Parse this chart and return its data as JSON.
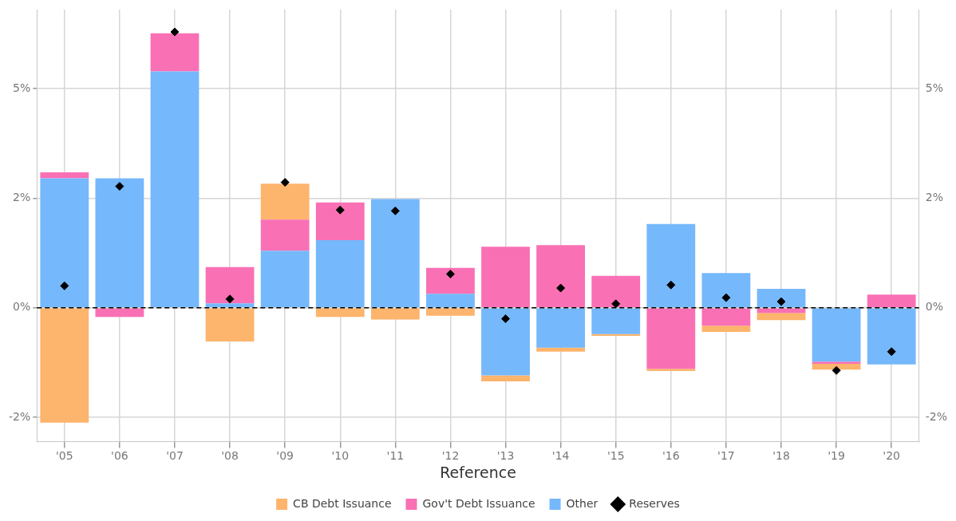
{
  "chart_data": {
    "type": "bar",
    "stacked": true,
    "categories": [
      "'05",
      "'06",
      "'07",
      "'08",
      "'09",
      "'10",
      "'11",
      "'12",
      "'13",
      "'14",
      "'15",
      "'16",
      "'17",
      "'18",
      "'19",
      "'20"
    ],
    "series": [
      {
        "name": "Other",
        "color": "#75b8fb",
        "values": [
          2.95,
          2.95,
          5.39,
          0.1,
          1.3,
          1.54,
          2.48,
          0.32,
          -1.54,
          -0.91,
          -0.6,
          1.91,
          0.79,
          0.43,
          -1.23,
          -1.29
        ]
      },
      {
        "name": "Gov't Debt Issuance",
        "color": "#f970b4",
        "values": [
          0.14,
          -0.21,
          0.87,
          0.83,
          0.71,
          0.86,
          0,
          0.59,
          1.39,
          1.43,
          0.73,
          -1.39,
          -0.41,
          -0.12,
          -0.05,
          0.3
        ]
      },
      {
        "name": "CB Debt Issuance",
        "color": "#fdb46c",
        "values": [
          -2.62,
          0,
          0,
          -0.77,
          0.82,
          -0.21,
          -0.27,
          -0.18,
          -0.14,
          -0.09,
          -0.04,
          -0.05,
          -0.14,
          -0.16,
          -0.13,
          0
        ]
      },
      {
        "name": "Reserves",
        "type": "scatter",
        "color": "#000000",
        "values": [
          0.5,
          2.77,
          6.29,
          0.2,
          2.86,
          2.23,
          2.21,
          0.77,
          -0.25,
          0.45,
          0.09,
          0.52,
          0.23,
          0.14,
          -1.43,
          -1.0
        ]
      }
    ],
    "ylim": [
      -3.05,
      6.8
    ],
    "yticks": [
      {
        "value": -2.5,
        "label": "-2%"
      },
      {
        "value": 0,
        "label": "0%"
      },
      {
        "value": 2.5,
        "label": "2%"
      },
      {
        "value": 5,
        "label": "5%"
      }
    ],
    "y2lim": [
      -3.05,
      6.8
    ],
    "y2ticks": [
      {
        "value": -2.5,
        "label": "-2%"
      },
      {
        "value": 0,
        "label": "0%"
      },
      {
        "value": 2.5,
        "label": "2%"
      },
      {
        "value": 5,
        "label": "5%"
      }
    ],
    "ref_lines": [
      {
        "axis": "y",
        "value": 0,
        "color": "#000000",
        "line_style": "dashed"
      }
    ],
    "grid": true,
    "legend": "bottom",
    "legend_title": "Reference",
    "marker": "diamond"
  }
}
